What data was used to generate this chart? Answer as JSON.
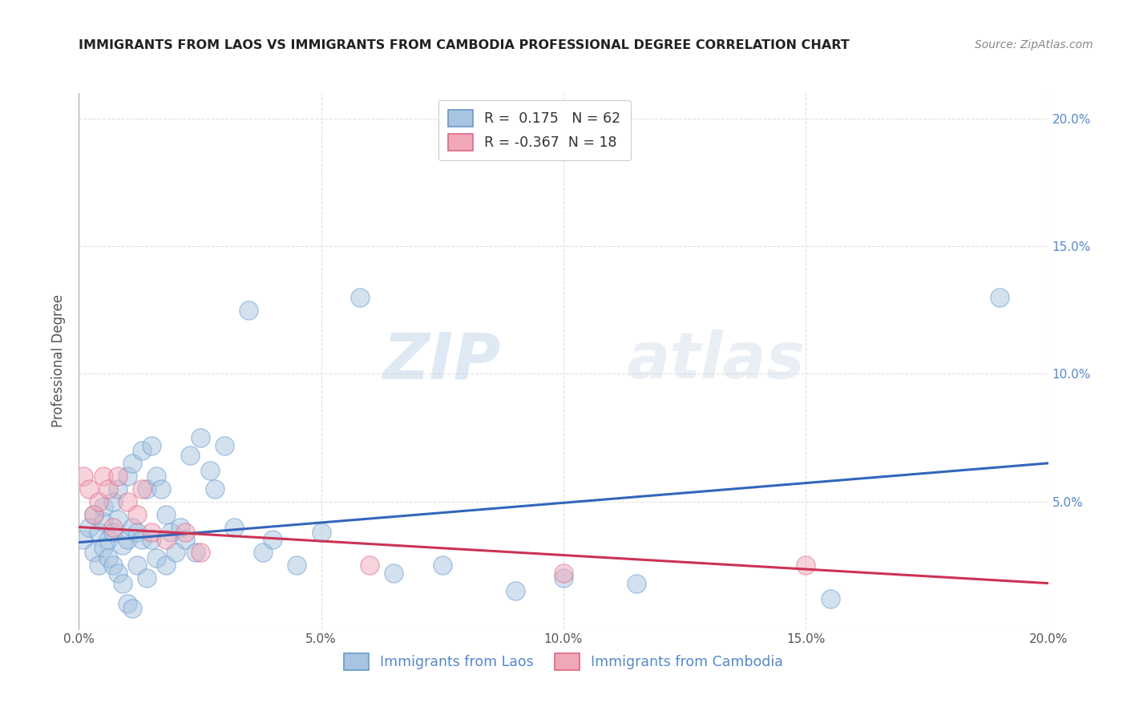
{
  "title": "IMMIGRANTS FROM LAOS VS IMMIGRANTS FROM CAMBODIA PROFESSIONAL DEGREE CORRELATION CHART",
  "source": "Source: ZipAtlas.com",
  "ylabel": "Professional Degree",
  "watermark_zip": "ZIP",
  "watermark_atlas": "atlas",
  "xlim": [
    0.0,
    0.2
  ],
  "ylim": [
    0.0,
    0.21
  ],
  "xtick_vals": [
    0.0,
    0.05,
    0.1,
    0.15,
    0.2
  ],
  "xtick_labels": [
    "0.0%",
    "5.0%",
    "10.0%",
    "15.0%",
    "20.0%"
  ],
  "ytick_vals": [
    0.0,
    0.05,
    0.1,
    0.15,
    0.2
  ],
  "ytick_labels_left": [
    "",
    "",
    "",
    "",
    ""
  ],
  "ytick_labels_right": [
    "",
    "5.0%",
    "10.0%",
    "15.0%",
    "20.0%"
  ],
  "series1_label": "Immigrants from Laos",
  "series2_label": "Immigrants from Cambodia",
  "series1_fill": "#a8c4e0",
  "series2_fill": "#f0a8b8",
  "series1_edge": "#6699cc",
  "series2_edge": "#dd6688",
  "R1": 0.175,
  "N1": 62,
  "R2": -0.367,
  "N2": 18,
  "line1_color": "#3366bb",
  "line2_color": "#cc3355",
  "line1_start_y": 0.034,
  "line1_end_y": 0.065,
  "line2_start_y": 0.04,
  "line2_end_y": 0.018,
  "laos_x": [
    0.001,
    0.002,
    0.003,
    0.003,
    0.004,
    0.004,
    0.005,
    0.005,
    0.005,
    0.006,
    0.006,
    0.007,
    0.007,
    0.007,
    0.008,
    0.008,
    0.008,
    0.009,
    0.009,
    0.01,
    0.01,
    0.01,
    0.011,
    0.011,
    0.011,
    0.012,
    0.012,
    0.013,
    0.013,
    0.014,
    0.014,
    0.015,
    0.015,
    0.016,
    0.016,
    0.017,
    0.018,
    0.018,
    0.019,
    0.02,
    0.021,
    0.022,
    0.023,
    0.024,
    0.025,
    0.027,
    0.028,
    0.03,
    0.032,
    0.035,
    0.038,
    0.04,
    0.045,
    0.05,
    0.058,
    0.065,
    0.075,
    0.09,
    0.1,
    0.115,
    0.155,
    0.19
  ],
  "laos_y": [
    0.035,
    0.04,
    0.045,
    0.03,
    0.038,
    0.025,
    0.042,
    0.048,
    0.032,
    0.028,
    0.035,
    0.05,
    0.038,
    0.025,
    0.043,
    0.055,
    0.022,
    0.033,
    0.018,
    0.06,
    0.035,
    0.01,
    0.065,
    0.04,
    0.008,
    0.038,
    0.025,
    0.07,
    0.035,
    0.055,
    0.02,
    0.072,
    0.035,
    0.06,
    0.028,
    0.055,
    0.045,
    0.025,
    0.038,
    0.03,
    0.04,
    0.035,
    0.068,
    0.03,
    0.075,
    0.062,
    0.055,
    0.072,
    0.04,
    0.125,
    0.03,
    0.035,
    0.025,
    0.038,
    0.13,
    0.022,
    0.025,
    0.015,
    0.02,
    0.018,
    0.012,
    0.13
  ],
  "cambodia_x": [
    0.001,
    0.002,
    0.003,
    0.004,
    0.005,
    0.006,
    0.007,
    0.008,
    0.01,
    0.012,
    0.013,
    0.015,
    0.018,
    0.022,
    0.025,
    0.06,
    0.1,
    0.15
  ],
  "cambodia_y": [
    0.06,
    0.055,
    0.045,
    0.05,
    0.06,
    0.055,
    0.04,
    0.06,
    0.05,
    0.045,
    0.055,
    0.038,
    0.035,
    0.038,
    0.03,
    0.025,
    0.022,
    0.025
  ],
  "background_color": "#ffffff",
  "grid_color": "#e0e0e0"
}
